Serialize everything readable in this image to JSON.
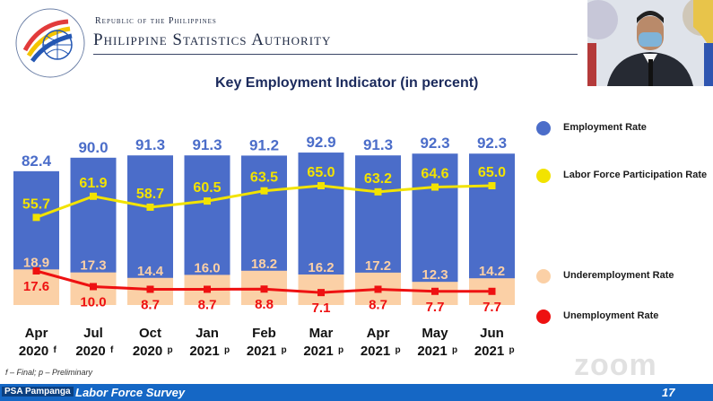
{
  "header": {
    "org_small": "Republic of the Philippines",
    "org_big": "Philippine Statistics Authority"
  },
  "chart_data": {
    "type": "bar",
    "title": "Key Employment Indicator (in percent)",
    "categories": [
      {
        "month": "Apr",
        "year": "2020",
        "flag": "f"
      },
      {
        "month": "Jul",
        "year": "2020",
        "flag": "f"
      },
      {
        "month": "Oct",
        "year": "2020",
        "flag": "p"
      },
      {
        "month": "Jan",
        "year": "2021",
        "flag": "p"
      },
      {
        "month": "Feb",
        "year": "2021",
        "flag": "p"
      },
      {
        "month": "Mar",
        "year": "2021",
        "flag": "p"
      },
      {
        "month": "Apr",
        "year": "2021",
        "flag": "p"
      },
      {
        "month": "May",
        "year": "2021",
        "flag": "p"
      },
      {
        "month": "Jun",
        "year": "2021",
        "flag": "p"
      }
    ],
    "series": [
      {
        "name": "Employment Rate",
        "kind": "bar",
        "color": "#4b6dc9",
        "values": [
          82.4,
          90.0,
          91.3,
          91.3,
          91.2,
          92.9,
          91.3,
          92.3,
          92.3
        ]
      },
      {
        "name": "Labor Force Participation Rate",
        "kind": "line",
        "color": "#f2e300",
        "values": [
          55.7,
          61.9,
          58.7,
          60.5,
          63.5,
          65.0,
          63.2,
          64.6,
          65.0
        ]
      },
      {
        "name": "Underemployment Rate",
        "kind": "bar",
        "color": "#fbd0a6",
        "values": [
          18.9,
          17.3,
          14.4,
          16.0,
          18.2,
          16.2,
          17.2,
          12.3,
          14.2
        ]
      },
      {
        "name": "Unemployment Rate",
        "kind": "line",
        "color": "#ee1111",
        "values": [
          17.6,
          10.0,
          8.7,
          8.7,
          8.8,
          7.1,
          8.7,
          7.7,
          7.7
        ]
      }
    ],
    "value_labels": [
      [
        "82.4",
        "90.0",
        "91.3",
        "91.3",
        "91.2",
        "92.9",
        "91.3",
        "92.3",
        "92.3"
      ],
      [
        "55.7",
        "61.9",
        "58.7",
        "60.5",
        "63.5",
        "65.0",
        "63.2",
        "64.6",
        "65.0"
      ],
      [
        "18.9",
        "17.3",
        "14.4",
        "16.0",
        "18.2",
        "16.2",
        "17.2",
        "12.3",
        "14.2"
      ],
      [
        "17.6",
        "10.0",
        "8.7",
        "8.7",
        "8.8",
        "7.1",
        "8.7",
        "7.7",
        "7.7"
      ]
    ],
    "ylim": [
      0,
      100
    ],
    "legend_placement": "right",
    "grid": false
  },
  "legend": [
    {
      "label": "Employment Rate",
      "color": "#4b6dc9"
    },
    {
      "label": "Labor Force Participation Rate",
      "color": "#f2e300"
    },
    {
      "label": "Underemployment Rate",
      "color": "#fbd0a6"
    },
    {
      "label": "Unemployment Rate",
      "color": "#ee1111"
    }
  ],
  "footnote": "f – Final; p – Preliminary",
  "watermark": "zoom",
  "footer": {
    "left_label": "PSA Pampanga",
    "title": "Labor Force Survey",
    "page": "17"
  }
}
